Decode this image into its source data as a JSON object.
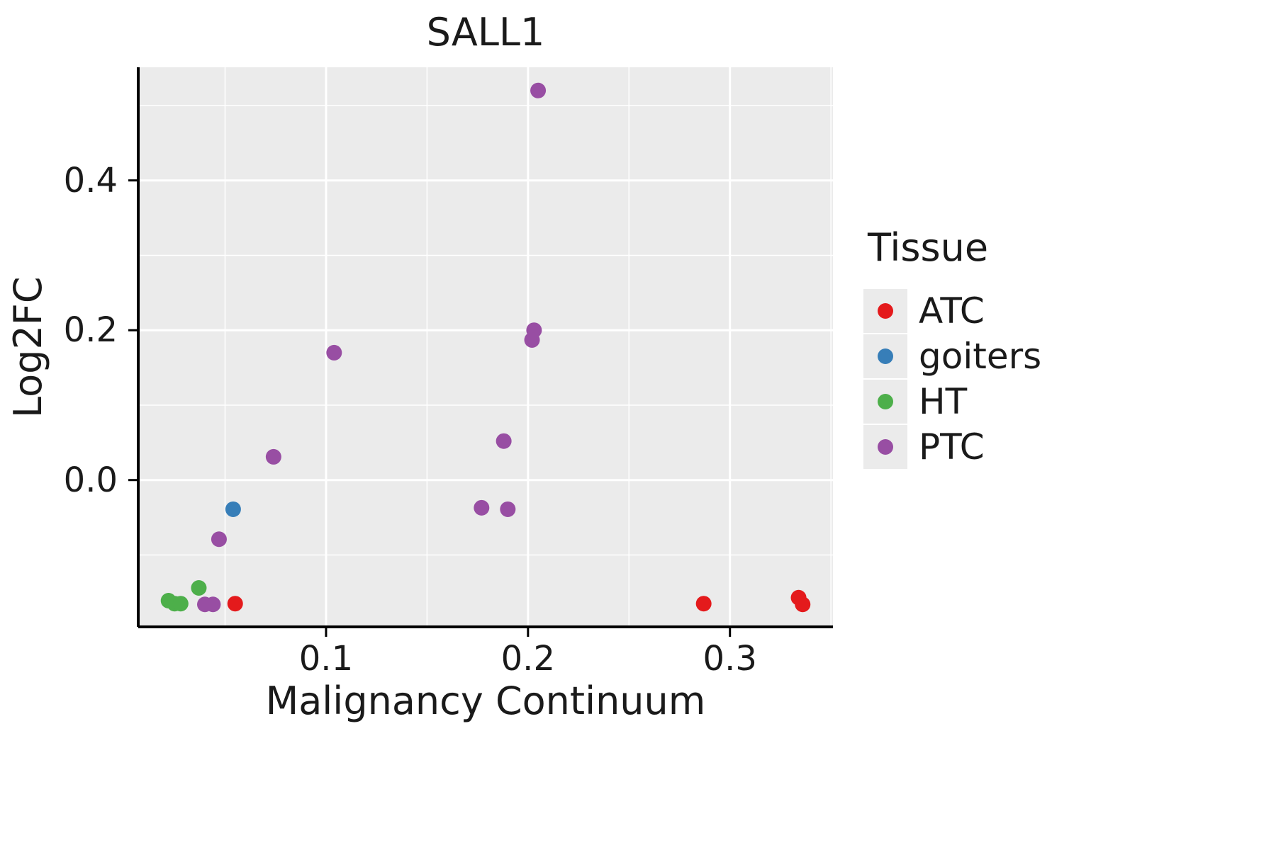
{
  "chart_data": {
    "type": "scatter",
    "title": "SALL1",
    "xlabel": "Malignancy Continuum",
    "ylabel": "Log2FC",
    "xlim": [
      0.007,
      0.351
    ],
    "ylim": [
      -0.196,
      0.551
    ],
    "x_ticks": [
      0.1,
      0.2,
      0.3
    ],
    "x_tick_labels": [
      "0.1",
      "0.2",
      "0.3"
    ],
    "x_minor_ticks": [
      0.05,
      0.15,
      0.25,
      0.35
    ],
    "y_ticks": [
      0.0,
      0.2,
      0.4
    ],
    "y_tick_labels": [
      "0.0",
      "0.2",
      "0.4"
    ],
    "y_minor_ticks": [
      -0.1,
      0.1,
      0.3,
      0.5
    ],
    "grid": true,
    "panel_background": "#ebebeb",
    "grid_color": "#ffffff",
    "axis_color": "#000000",
    "legend_title": "Tissue",
    "legend_position": "right",
    "point_radius": 11,
    "series": [
      {
        "name": "ATC",
        "color": "#e41a1c",
        "points": [
          [
            0.055,
            -0.165
          ],
          [
            0.287,
            -0.165
          ],
          [
            0.334,
            -0.157
          ],
          [
            0.336,
            -0.166
          ]
        ]
      },
      {
        "name": "goiters",
        "color": "#377eb8",
        "points": [
          [
            0.054,
            -0.039
          ]
        ]
      },
      {
        "name": "HT",
        "color": "#4daf4a",
        "points": [
          [
            0.022,
            -0.161
          ],
          [
            0.025,
            -0.165
          ],
          [
            0.028,
            -0.165
          ],
          [
            0.037,
            -0.144
          ]
        ]
      },
      {
        "name": "PTC",
        "color": "#984ea3",
        "points": [
          [
            0.205,
            0.52
          ],
          [
            0.203,
            0.2
          ],
          [
            0.202,
            0.187
          ],
          [
            0.104,
            0.17
          ],
          [
            0.188,
            0.052
          ],
          [
            0.074,
            0.031
          ],
          [
            0.177,
            -0.037
          ],
          [
            0.19,
            -0.039
          ],
          [
            0.047,
            -0.079
          ],
          [
            0.04,
            -0.166
          ],
          [
            0.044,
            -0.166
          ]
        ]
      }
    ]
  }
}
